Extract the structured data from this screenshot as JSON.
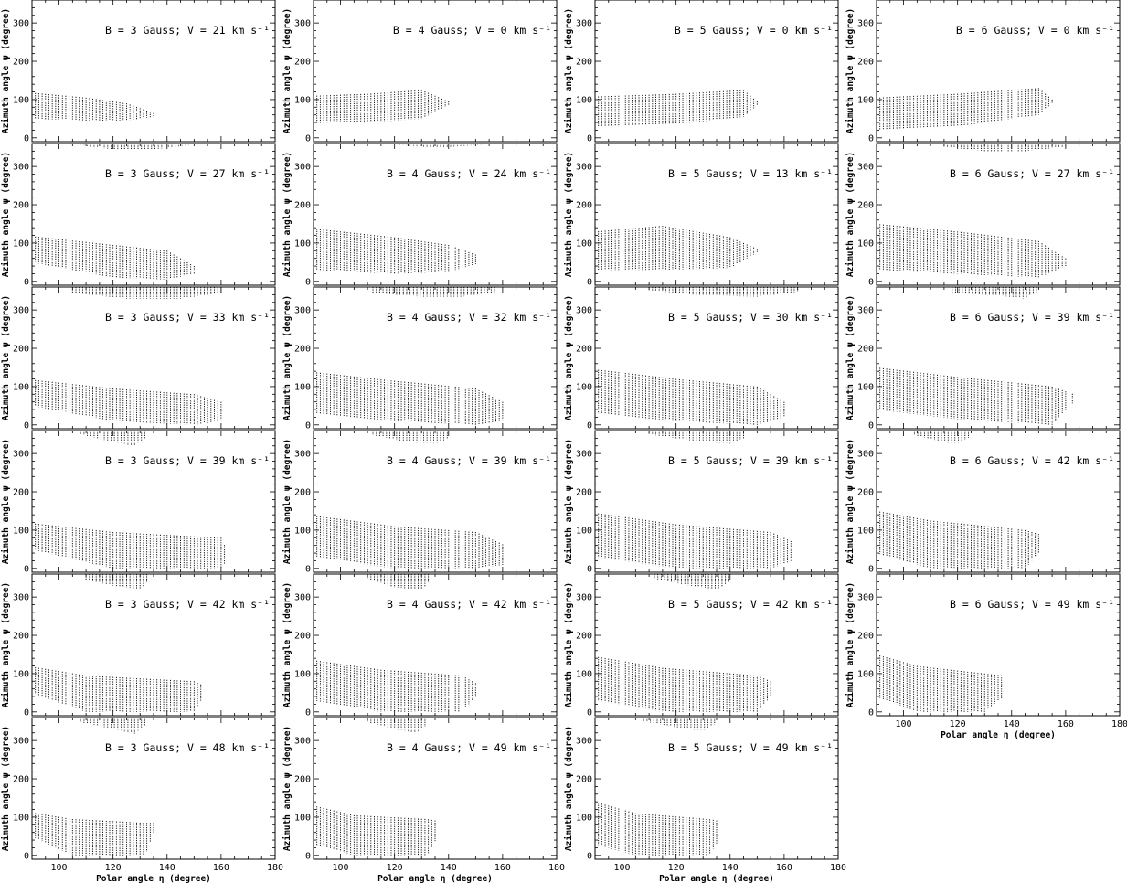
{
  "figure": {
    "ylabel": "Azimuth angle ψ (degree)",
    "xlabel": "Polar angle η (degree)",
    "xlim": [
      90,
      180
    ],
    "ylim": [
      -10,
      360
    ],
    "xticks": [
      "100",
      "120",
      "140",
      "160",
      "180"
    ],
    "yticks": [
      "0",
      "100",
      "200",
      "300"
    ]
  },
  "chart_data": [
    {
      "type": "scatter",
      "title": "B = 3 Gauss; V = 21 km s⁻¹",
      "B": 3,
      "V": 21,
      "lower": {
        "x": [
          90,
          110,
          125,
          135
        ],
        "top": [
          118,
          105,
          90,
          65
        ],
        "bottom": [
          50,
          45,
          45,
          55
        ]
      }
    },
    {
      "type": "scatter",
      "title": "B = 4 Gauss; V = 0 km s⁻¹",
      "B": 4,
      "V": 0,
      "lower": {
        "x": [
          90,
          110,
          130,
          140
        ],
        "top": [
          110,
          115,
          125,
          95
        ],
        "bottom": [
          38,
          40,
          50,
          85
        ]
      }
    },
    {
      "type": "scatter",
      "title": "B = 5 Gauss; V = 0 km s⁻¹",
      "B": 5,
      "V": 0,
      "lower": {
        "x": [
          90,
          120,
          145,
          150
        ],
        "top": [
          108,
          115,
          125,
          95
        ],
        "bottom": [
          30,
          35,
          55,
          85
        ]
      }
    },
    {
      "type": "scatter",
      "title": "B = 6 Gauss; V = 0 km s⁻¹",
      "B": 6,
      "V": 0,
      "lower": {
        "x": [
          90,
          120,
          150,
          155
        ],
        "top": [
          105,
          115,
          130,
          100
        ],
        "bottom": [
          20,
          30,
          60,
          90
        ]
      }
    },
    {
      "type": "scatter",
      "title": "B = 3 Gauss; V = 27 km s⁻¹",
      "B": 3,
      "V": 27,
      "lower": {
        "x": [
          90,
          120,
          140,
          150
        ],
        "top": [
          118,
          95,
          80,
          40
        ],
        "bottom": [
          50,
          10,
          5,
          20
        ]
      },
      "upper": {
        "x": [
          108,
          120,
          135,
          148
        ],
        "top": [
          360,
          360,
          360,
          360
        ],
        "bottom": [
          355,
          345,
          345,
          355
        ]
      }
    },
    {
      "type": "scatter",
      "title": "B = 4 Gauss; V = 24 km s⁻¹",
      "B": 4,
      "V": 24,
      "lower": {
        "x": [
          90,
          120,
          140,
          150
        ],
        "top": [
          138,
          115,
          95,
          70
        ],
        "bottom": [
          30,
          20,
          25,
          45
        ]
      },
      "upper": {
        "x": [
          122,
          135,
          152
        ],
        "top": [
          360,
          360,
          360
        ],
        "bottom": [
          355,
          350,
          355
        ]
      }
    },
    {
      "type": "scatter",
      "title": "B = 5 Gauss; V = 13 km s⁻¹",
      "B": 5,
      "V": 13,
      "lower": {
        "x": [
          90,
          115,
          140,
          150
        ],
        "top": [
          130,
          145,
          115,
          85
        ],
        "bottom": [
          30,
          30,
          35,
          75
        ]
      }
    },
    {
      "type": "scatter",
      "title": "B = 6 Gauss; V = 27 km s⁻¹",
      "B": 6,
      "V": 27,
      "lower": {
        "x": [
          90,
          120,
          150,
          160
        ],
        "top": [
          150,
          130,
          105,
          60
        ],
        "bottom": [
          30,
          20,
          10,
          40
        ]
      },
      "upper": {
        "x": [
          115,
          130,
          145,
          160
        ],
        "top": [
          360,
          360,
          360,
          360
        ],
        "bottom": [
          352,
          340,
          340,
          352
        ]
      }
    },
    {
      "type": "scatter",
      "title": "B = 3 Gauss; V = 33 km s⁻¹",
      "B": 3,
      "V": 33,
      "lower": {
        "x": [
          90,
          120,
          150,
          160
        ],
        "top": [
          118,
          95,
          80,
          60
        ],
        "bottom": [
          50,
          10,
          0,
          10
        ]
      },
      "upper": {
        "x": [
          105,
          125,
          145,
          160
        ],
        "top": [
          360,
          360,
          360,
          360
        ],
        "bottom": [
          345,
          330,
          330,
          345
        ]
      }
    },
    {
      "type": "scatter",
      "title": "B = 4 Gauss; V = 32 km s⁻¹",
      "B": 4,
      "V": 32,
      "lower": {
        "x": [
          90,
          120,
          150,
          160
        ],
        "top": [
          138,
          115,
          95,
          60
        ],
        "bottom": [
          30,
          10,
          0,
          10
        ]
      },
      "upper": {
        "x": [
          112,
          130,
          145,
          158
        ],
        "top": [
          360,
          360,
          360,
          360
        ],
        "bottom": [
          345,
          335,
          335,
          348
        ]
      }
    },
    {
      "type": "scatter",
      "title": "B = 5 Gauss; V = 30 km s⁻¹",
      "B": 5,
      "V": 30,
      "lower": {
        "x": [
          90,
          120,
          150,
          160
        ],
        "top": [
          145,
          120,
          100,
          60
        ],
        "bottom": [
          30,
          10,
          0,
          20
        ]
      },
      "upper": {
        "x": [
          110,
          130,
          150,
          165
        ],
        "top": [
          360,
          360,
          360,
          360
        ],
        "bottom": [
          352,
          338,
          335,
          348
        ]
      }
    },
    {
      "type": "scatter",
      "title": "B = 6 Gauss; V = 39 km s⁻¹",
      "B": 6,
      "V": 39,
      "lower": {
        "x": [
          90,
          120,
          155,
          163
        ],
        "top": [
          150,
          125,
          100,
          80
        ],
        "bottom": [
          40,
          15,
          0,
          60
        ]
      },
      "upper": {
        "x": [
          118,
          135,
          145,
          150
        ],
        "top": [
          360,
          360,
          360,
          360
        ],
        "bottom": [
          345,
          338,
          330,
          350
        ]
      }
    },
    {
      "type": "scatter",
      "title": "B = 3 Gauss; V = 39 km s⁻¹",
      "B": 3,
      "V": 39,
      "lower": {
        "x": [
          90,
          120,
          160,
          162
        ],
        "top": [
          118,
          95,
          80,
          50
        ],
        "bottom": [
          50,
          0,
          0,
          20
        ]
      },
      "upper": {
        "x": [
          108,
          120,
          128,
          132
        ],
        "top": [
          360,
          360,
          360,
          360
        ],
        "bottom": [
          350,
          330,
          320,
          340
        ]
      }
    },
    {
      "type": "scatter",
      "title": "B = 4 Gauss; V = 39 km s⁻¹",
      "B": 4,
      "V": 39,
      "lower": {
        "x": [
          90,
          120,
          150,
          161
        ],
        "top": [
          138,
          110,
          95,
          60
        ],
        "bottom": [
          30,
          0,
          0,
          10
        ]
      },
      "upper": {
        "x": [
          112,
          125,
          135,
          140
        ],
        "top": [
          360,
          360,
          360,
          360
        ],
        "bottom": [
          348,
          330,
          325,
          340
        ]
      }
    },
    {
      "type": "scatter",
      "title": "B = 5 Gauss; V = 39 km s⁻¹",
      "B": 5,
      "V": 39,
      "lower": {
        "x": [
          90,
          120,
          155,
          163
        ],
        "top": [
          145,
          115,
          95,
          70
        ],
        "bottom": [
          30,
          0,
          0,
          20
        ]
      },
      "upper": {
        "x": [
          110,
          125,
          140,
          145
        ],
        "top": [
          360,
          360,
          360,
          360
        ],
        "bottom": [
          350,
          335,
          325,
          340
        ]
      }
    },
    {
      "type": "scatter",
      "title": "B = 6 Gauss; V = 42 km s⁻¹",
      "B": 6,
      "V": 42,
      "lower": {
        "x": [
          90,
          110,
          145,
          150
        ],
        "top": [
          150,
          125,
          100,
          90
        ],
        "bottom": [
          40,
          0,
          0,
          40
        ]
      },
      "upper": {
        "x": [
          104,
          115,
          120,
          125
        ],
        "top": [
          360,
          360,
          360,
          360
        ],
        "bottom": [
          348,
          330,
          325,
          345
        ]
      }
    },
    {
      "type": "scatter",
      "title": "B = 3 Gauss; V = 42 km s⁻¹",
      "B": 3,
      "V": 42,
      "lower": {
        "x": [
          90,
          110,
          150,
          153
        ],
        "top": [
          118,
          95,
          80,
          70
        ],
        "bottom": [
          50,
          0,
          0,
          35
        ]
      },
      "upper": {
        "x": [
          110,
          120,
          130,
          133
        ],
        "top": [
          360,
          360,
          360,
          360
        ],
        "bottom": [
          345,
          330,
          320,
          340
        ]
      }
    },
    {
      "type": "scatter",
      "title": "B = 4 Gauss; V = 42 km s⁻¹",
      "B": 4,
      "V": 42,
      "lower": {
        "x": [
          90,
          115,
          145,
          150
        ],
        "top": [
          135,
          110,
          95,
          75
        ],
        "bottom": [
          30,
          0,
          0,
          40
        ]
      },
      "upper": {
        "x": [
          110,
          120,
          130,
          133
        ],
        "top": [
          360,
          360,
          360,
          360
        ],
        "bottom": [
          348,
          325,
          320,
          340
        ]
      }
    },
    {
      "type": "scatter",
      "title": "B = 5 Gauss; V = 42 km s⁻¹",
      "B": 5,
      "V": 42,
      "lower": {
        "x": [
          90,
          115,
          150,
          155
        ],
        "top": [
          145,
          115,
          95,
          80
        ],
        "bottom": [
          30,
          0,
          0,
          40
        ]
      },
      "upper": {
        "x": [
          112,
          125,
          135,
          140
        ],
        "top": [
          360,
          360,
          360,
          360
        ],
        "bottom": [
          348,
          330,
          320,
          340
        ]
      }
    },
    {
      "type": "scatter",
      "title": "B = 6 Gauss; V = 49 km s⁻¹",
      "B": 6,
      "V": 49,
      "lower": {
        "x": [
          90,
          105,
          130,
          137
        ],
        "top": [
          150,
          120,
          100,
          95
        ],
        "bottom": [
          40,
          0,
          0,
          40
        ]
      }
    },
    {
      "type": "scatter",
      "title": "B = 3 Gauss; V = 48 km s⁻¹",
      "B": 3,
      "V": 48,
      "lower": {
        "x": [
          90,
          105,
          132,
          135
        ],
        "top": [
          112,
          95,
          85,
          85
        ],
        "bottom": [
          50,
          0,
          0,
          60
        ]
      },
      "upper": {
        "x": [
          108,
          120,
          128,
          132
        ],
        "top": [
          360,
          360,
          360,
          360
        ],
        "bottom": [
          348,
          330,
          318,
          340
        ]
      }
    },
    {
      "type": "scatter",
      "title": "B = 4 Gauss; V = 49 km s⁻¹",
      "B": 4,
      "V": 49,
      "lower": {
        "x": [
          90,
          105,
          132,
          136
        ],
        "top": [
          130,
          105,
          95,
          90
        ],
        "bottom": [
          30,
          0,
          0,
          50
        ]
      },
      "upper": {
        "x": [
          110,
          120,
          128,
          132
        ],
        "top": [
          360,
          360,
          360,
          360
        ],
        "bottom": [
          348,
          330,
          320,
          340
        ]
      }
    },
    {
      "type": "scatter",
      "title": "B = 5 Gauss; V = 49 km s⁻¹",
      "B": 5,
      "V": 49,
      "lower": {
        "x": [
          90,
          105,
          132,
          136
        ],
        "top": [
          140,
          110,
          95,
          90
        ],
        "bottom": [
          30,
          0,
          0,
          40
        ]
      },
      "upper": {
        "x": [
          108,
          120,
          130,
          135
        ],
        "top": [
          360,
          360,
          360,
          360
        ],
        "bottom": [
          350,
          335,
          325,
          345
        ]
      }
    }
  ]
}
